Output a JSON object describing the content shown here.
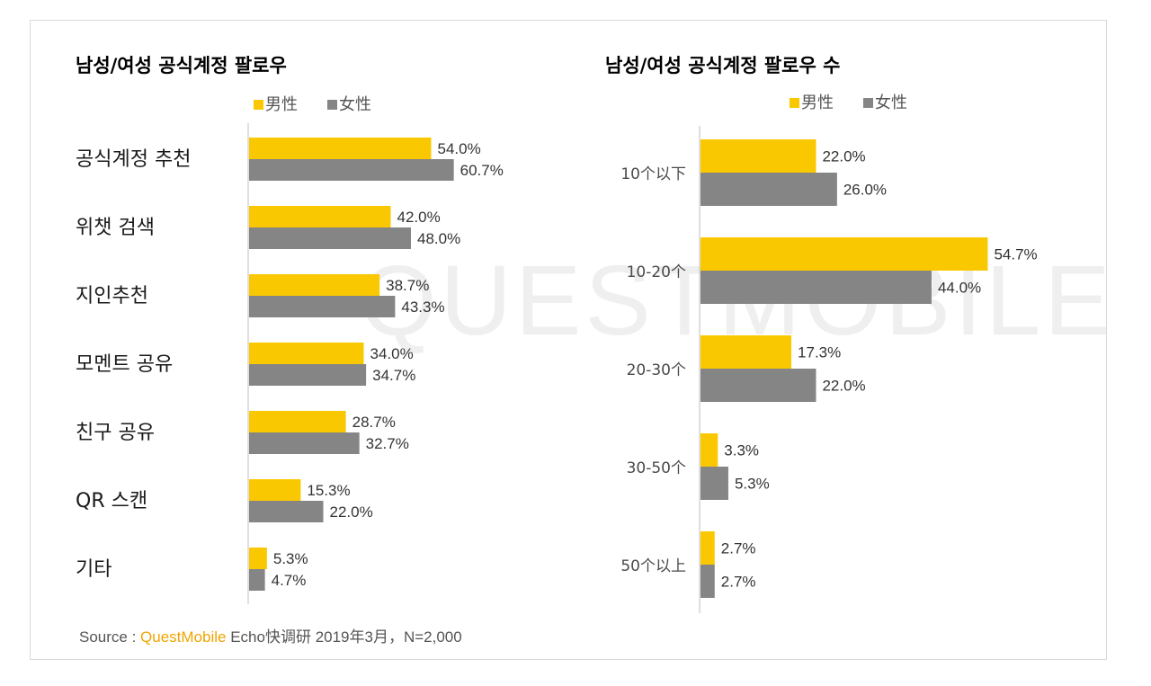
{
  "colors": {
    "male": "#fac800",
    "female": "#858585"
  },
  "watermark": "QUESTMOBILE",
  "source": {
    "prefix": "Source :",
    "brand": "QuestMobile",
    "suffix": "Echo快调研 2019年3月，N=2,000"
  },
  "chart_data": [
    {
      "type": "bar",
      "orientation": "horizontal",
      "title": "남성/여성 공식계정 팔로우",
      "legend": [
        "男性",
        "女性"
      ],
      "legend_position": "top",
      "categories": [
        "공식계정 추천",
        "위챗 검색",
        "지인추천",
        "모멘트 공유",
        "친구 공유",
        "QR 스캔",
        "기타"
      ],
      "series": [
        {
          "name": "男性",
          "values": [
            54.0,
            42.0,
            38.7,
            34.0,
            28.7,
            15.3,
            5.3
          ]
        },
        {
          "name": "女性",
          "values": [
            60.7,
            48.0,
            43.3,
            34.7,
            32.7,
            22.0,
            4.7
          ]
        }
      ],
      "value_labels": [
        [
          "54.0%",
          "42.0%",
          "38.7%",
          "34.0%",
          "28.7%",
          "15.3%",
          "5.3%"
        ],
        [
          "60.7%",
          "48.0%",
          "43.3%",
          "34.7%",
          "32.7%",
          "22.0%",
          "4.7%"
        ]
      ]
    },
    {
      "type": "bar",
      "orientation": "horizontal",
      "title": "남성/여성 공식계정 팔로우 수",
      "legend": [
        "男性",
        "女性"
      ],
      "legend_position": "top",
      "categories": [
        "10个以下",
        "10-20个",
        "20-30个",
        "30-50个",
        "50个以上"
      ],
      "series": [
        {
          "name": "男性",
          "values": [
            22.0,
            54.7,
            17.3,
            3.3,
            2.7
          ]
        },
        {
          "name": "女性",
          "values": [
            26.0,
            44.0,
            22.0,
            5.3,
            2.7
          ]
        }
      ],
      "value_labels": [
        [
          "22.0%",
          "54.7%",
          "17.3%",
          "3.3%",
          "2.7%"
        ],
        [
          "26.0%",
          "44.0%",
          "22.0%",
          "5.3%",
          "2.7%"
        ]
      ]
    }
  ]
}
